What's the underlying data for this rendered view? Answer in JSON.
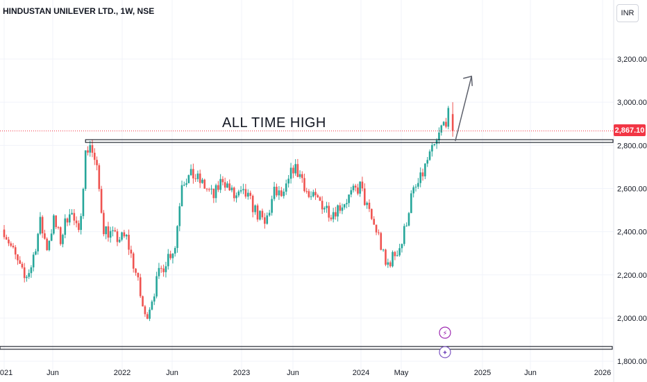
{
  "header": {
    "title": "HINDUSTAN UNILEVER LTD., 1W, NSE",
    "currency": "INR"
  },
  "annotation": {
    "label": "ALL TIME HIGH"
  },
  "last_price": "2,867.10",
  "colors": {
    "up": "#26a69a",
    "down": "#ef5350",
    "last_price": "#f23645",
    "grid": "#f0f3fa"
  },
  "chart_data": {
    "type": "candlestick",
    "title": "HINDUSTAN UNILEVER LTD., 1W, NSE",
    "y_unit": "INR",
    "ylim": [
      1780,
      3300
    ],
    "y_ticks": [
      {
        "value": 3200,
        "label": "3,200.00"
      },
      {
        "value": 3000,
        "label": "3,000.00"
      },
      {
        "value": 2800,
        "label": "2,800.00"
      },
      {
        "value": 2600,
        "label": "2,600.00"
      },
      {
        "value": 2400,
        "label": "2,400.00"
      },
      {
        "value": 2200,
        "label": "2,200.00"
      },
      {
        "value": 2000,
        "label": "2,000.00"
      },
      {
        "value": 1800,
        "label": "1,800.00"
      }
    ],
    "x_ticks": [
      {
        "date": "2021-01",
        "label": "2021"
      },
      {
        "date": "2021-06",
        "label": "Jun"
      },
      {
        "date": "2022-01",
        "label": "2022"
      },
      {
        "date": "2022-06",
        "label": "Jun"
      },
      {
        "date": "2023-01",
        "label": "2023"
      },
      {
        "date": "2023-06",
        "label": "Jun"
      },
      {
        "date": "2024-01",
        "label": "2024"
      },
      {
        "date": "2024-05",
        "label": "May"
      },
      {
        "date": "2025-01",
        "label": "2025"
      },
      {
        "date": "2025-06",
        "label": "Jun"
      },
      {
        "date": "2026-01",
        "label": "2026"
      }
    ],
    "close_path": [
      [
        "2021-01-01",
        2410
      ],
      [
        "2021-02-05",
        2280
      ],
      [
        "2021-03-05",
        2180
      ],
      [
        "2021-03-26",
        2240
      ],
      [
        "2021-04-23",
        2440
      ],
      [
        "2021-05-14",
        2330
      ],
      [
        "2021-06-04",
        2450
      ],
      [
        "2021-06-25",
        2360
      ],
      [
        "2021-07-23",
        2510
      ],
      [
        "2021-08-20",
        2380
      ],
      [
        "2021-09-10",
        2760
      ],
      [
        "2021-09-24",
        2810
      ],
      [
        "2021-10-15",
        2680
      ],
      [
        "2021-11-05",
        2420
      ],
      [
        "2021-12-10",
        2370
      ],
      [
        "2022-01-14",
        2370
      ],
      [
        "2022-02-11",
        2210
      ],
      [
        "2022-03-11",
        2000
      ],
      [
        "2022-03-25",
        2060
      ],
      [
        "2022-04-22",
        2200
      ],
      [
        "2022-05-20",
        2290
      ],
      [
        "2022-06-10",
        2330
      ],
      [
        "2022-07-01",
        2640
      ],
      [
        "2022-08-05",
        2660
      ],
      [
        "2022-09-09",
        2610
      ],
      [
        "2022-10-07",
        2560
      ],
      [
        "2022-11-04",
        2650
      ],
      [
        "2022-12-09",
        2560
      ],
      [
        "2023-01-13",
        2570
      ],
      [
        "2023-02-10",
        2500
      ],
      [
        "2023-03-10",
        2430
      ],
      [
        "2023-04-07",
        2580
      ],
      [
        "2023-05-05",
        2560
      ],
      [
        "2023-06-02",
        2700
      ],
      [
        "2023-06-30",
        2650
      ],
      [
        "2023-07-21",
        2560
      ],
      [
        "2023-08-25",
        2540
      ],
      [
        "2023-09-29",
        2490
      ],
      [
        "2023-10-27",
        2520
      ],
      [
        "2023-11-24",
        2560
      ],
      [
        "2023-12-29",
        2610
      ],
      [
        "2024-01-26",
        2480
      ],
      [
        "2024-02-23",
        2380
      ],
      [
        "2024-03-15",
        2240
      ],
      [
        "2024-04-05",
        2280
      ],
      [
        "2024-05-03",
        2350
      ],
      [
        "2024-05-31",
        2560
      ],
      [
        "2024-06-28",
        2640
      ],
      [
        "2024-07-19",
        2730
      ],
      [
        "2024-08-16",
        2810
      ],
      [
        "2024-08-30",
        2880
      ],
      [
        "2024-09-20",
        2940
      ],
      [
        "2024-09-27",
        2867
      ]
    ],
    "levels": [
      {
        "name": "all-time-high-zone",
        "from": "2021-09-10",
        "value": 2820
      },
      {
        "name": "support-zone",
        "value": 1862
      }
    ],
    "annotations": [
      {
        "text": "ALL TIME HIGH",
        "date": "2023-01-13",
        "value": 2858
      },
      {
        "type": "arrow",
        "from": [
          "2024-10-11",
          2820
        ],
        "to": [
          "2024-11-29",
          3120
        ]
      }
    ],
    "last_price": 2867.1
  }
}
